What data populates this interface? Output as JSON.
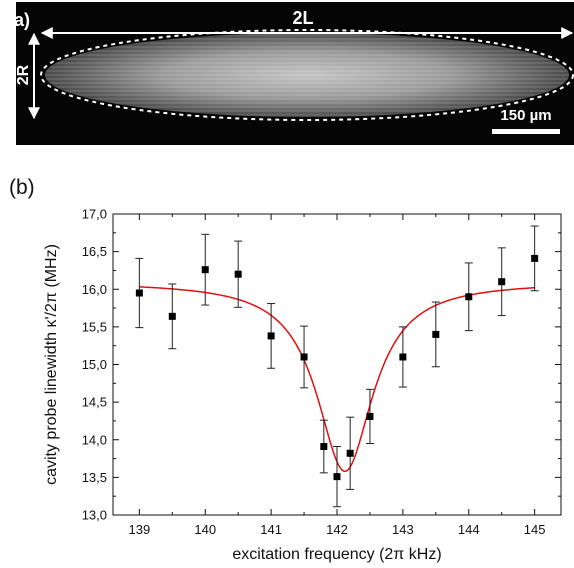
{
  "panel_a": {
    "label": "(a)",
    "length_label": "2L",
    "radius_label": "2R",
    "scalebar_label": "150 µm",
    "colors": {
      "background": "#050505",
      "arrows": "#ffffff",
      "crystal": "#bdbdbd"
    }
  },
  "panel_b": {
    "label": "(b)"
  },
  "chart_data": {
    "type": "scatter",
    "title": "",
    "xlabel": "excitation frequency (2π kHz)",
    "ylabel": "cavity probe linewidth κ'/2π (MHz)",
    "xlim": [
      138.6,
      145.4
    ],
    "ylim": [
      13.0,
      17.0
    ],
    "xticks": [
      139,
      140,
      141,
      142,
      143,
      144,
      145
    ],
    "xtick_labels": [
      "139",
      "140",
      "141",
      "142",
      "143",
      "144",
      "145"
    ],
    "yticks": [
      13.0,
      13.5,
      14.0,
      14.5,
      15.0,
      15.5,
      16.0,
      16.5,
      17.0
    ],
    "ytick_labels": [
      "13,0",
      "13,5",
      "14,0",
      "14,5",
      "15,0",
      "15,5",
      "16,0",
      "16,5",
      "17,0"
    ],
    "grid": false,
    "series": [
      {
        "marker": "square",
        "color": "#000000",
        "x": [
          139.0,
          139.5,
          140.0,
          140.5,
          141.0,
          141.5,
          141.8,
          142.0,
          142.2,
          142.5,
          143.0,
          143.5,
          144.0,
          144.5,
          145.0
        ],
        "y": [
          15.95,
          15.64,
          16.26,
          16.2,
          15.38,
          15.1,
          13.91,
          13.51,
          13.82,
          14.31,
          15.1,
          15.4,
          15.9,
          16.1,
          16.41
        ],
        "yerr": [
          0.46,
          0.43,
          0.47,
          0.44,
          0.43,
          0.41,
          0.35,
          0.4,
          0.48,
          0.36,
          0.4,
          0.43,
          0.45,
          0.45,
          0.43
        ]
      },
      {
        "type": "line",
        "role": "fit",
        "color": "#e01010",
        "model": "lorentzian_dip",
        "baseline": 16.1,
        "depth": 2.52,
        "center": 142.12,
        "halfwidth": 0.52
      }
    ]
  }
}
